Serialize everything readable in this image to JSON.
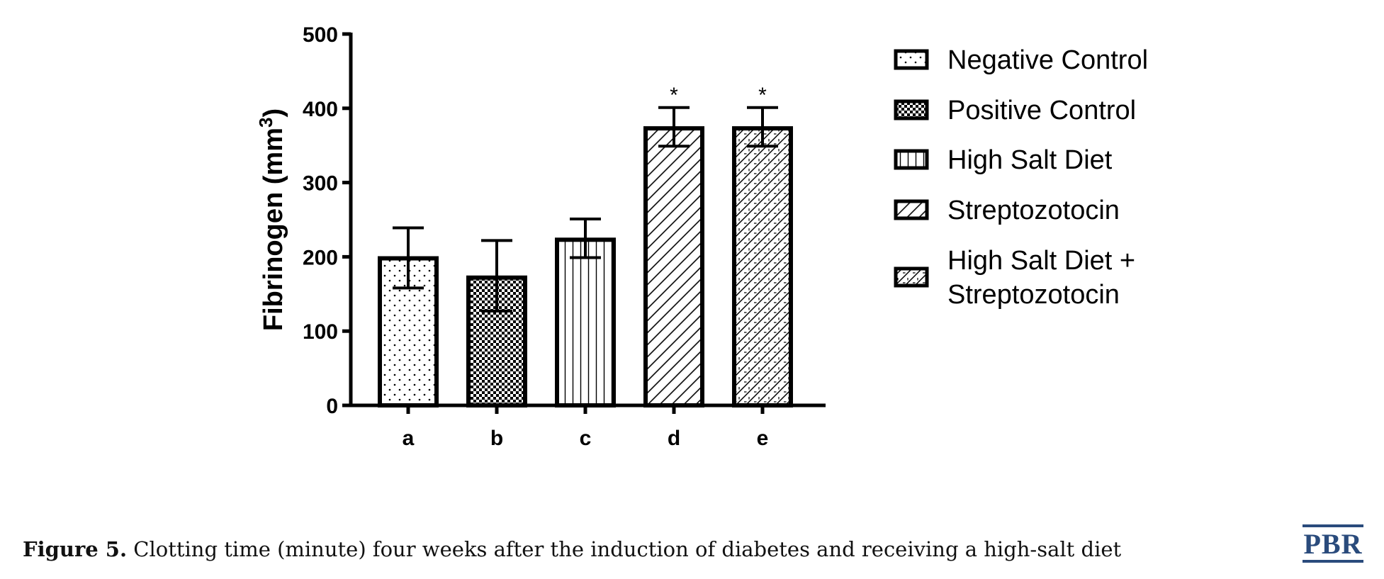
{
  "chart_data": {
    "type": "bar",
    "categories": [
      "a",
      "b",
      "c",
      "d",
      "e"
    ],
    "values": [
      198,
      172,
      223,
      373,
      373
    ],
    "error_plus": [
      41,
      50,
      28,
      28,
      28
    ],
    "error_minus": [
      40,
      45,
      24,
      24,
      24
    ],
    "significance": [
      "",
      "",
      "",
      "*",
      "*"
    ],
    "ylabel": "Fibrinogen (mm",
    "ylabel_sup": "3",
    "ylabel_close": ")",
    "ylim": [
      0,
      500
    ],
    "yticks": [
      0,
      100,
      200,
      300,
      400,
      500
    ],
    "legend_placement": "right",
    "legend": [
      {
        "lines": [
          "Negative Control"
        ],
        "pattern": "dots"
      },
      {
        "lines": [
          "Positive Control"
        ],
        "pattern": "checker"
      },
      {
        "lines": [
          "High Salt Diet"
        ],
        "pattern": "vertical"
      },
      {
        "lines": [
          "Streptozotocin"
        ],
        "pattern": "diagonal"
      },
      {
        "lines": [
          "High Salt Diet +",
          "Streptozotocin"
        ],
        "pattern": "crosshatch"
      }
    ]
  },
  "caption": {
    "label": "Figure 5.",
    "text": " Clotting time (minute) four weeks after the induction of diabetes and receiving a high-salt diet"
  },
  "logo": {
    "text": "PBR",
    "color": "#2a4b7c"
  }
}
